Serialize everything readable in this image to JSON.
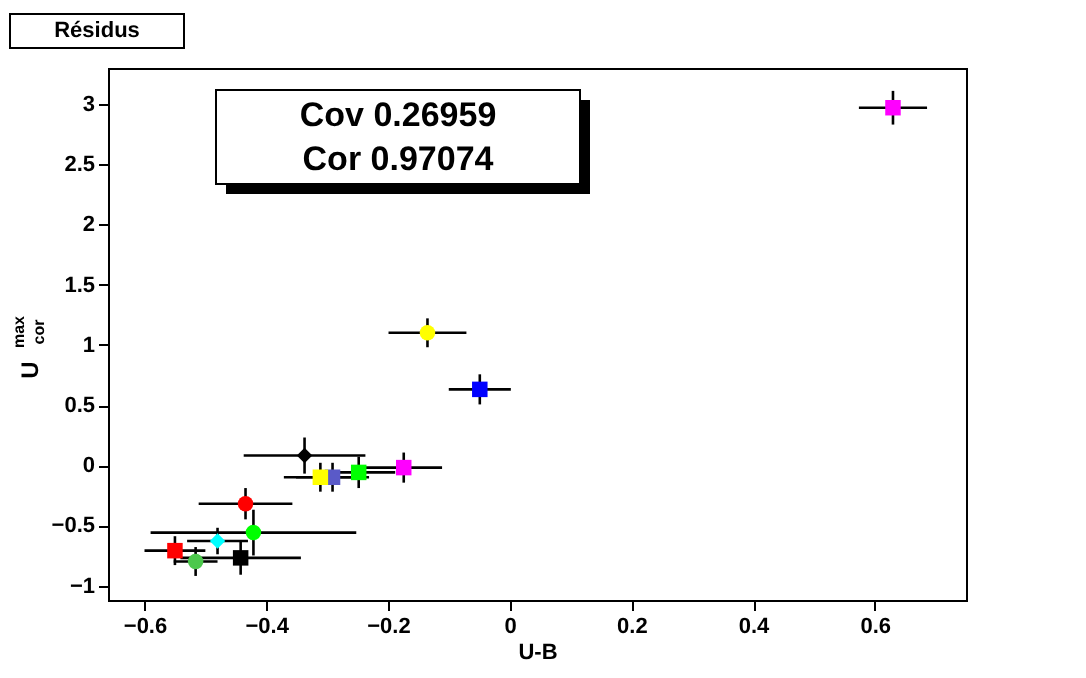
{
  "chart_data": {
    "type": "scatter",
    "title": "Résidus",
    "xlabel": "U-B",
    "ylabel": "U$^{max}$$_{cor}$",
    "annotations": [
      "Cov 0.26959",
      "Cor 0.97074"
    ],
    "xlim": [
      -0.66,
      0.75
    ],
    "ylim": [
      -1.12,
      3.3
    ],
    "xticks": [
      -0.6,
      -0.4,
      -0.2,
      0,
      0.2,
      0.4,
      0.6
    ],
    "yticks": [
      -1,
      -0.5,
      0,
      0.5,
      1,
      1.5,
      2,
      2.5,
      3
    ],
    "grid": false,
    "legend": false,
    "series": [
      {
        "color": "#ff00ff",
        "marker": "square",
        "x": [
          0.63
        ],
        "values": [
          2.97
        ],
        "errors": [
          0.14
        ],
        "xerrors": [
          0.056
        ]
      },
      {
        "color": "#ffff00",
        "marker": "circle",
        "x": [
          -0.135
        ],
        "values": [
          1.1
        ],
        "errors": [
          0.12
        ],
        "xerrors": [
          0.064
        ]
      },
      {
        "color": "#0000ff",
        "marker": "square",
        "x": [
          -0.049
        ],
        "values": [
          0.63
        ],
        "errors": [
          0.125
        ],
        "xerrors": [
          0.051
        ]
      },
      {
        "color": "#000000",
        "marker": "diamond",
        "x": [
          -0.337
        ],
        "values": [
          0.08
        ],
        "errors": [
          0.15
        ],
        "xerrors": [
          0.1
        ]
      },
      {
        "color": "#5a5ac8",
        "marker": "square",
        "x": [
          -0.291
        ],
        "values": [
          -0.1
        ],
        "errors": [
          0.12
        ],
        "xerrors": [
          0.06
        ]
      },
      {
        "color": "#ffff00",
        "marker": "square",
        "x": [
          -0.311
        ],
        "values": [
          -0.1
        ],
        "errors": [
          0.12
        ],
        "xerrors": [
          0.06
        ]
      },
      {
        "color": "#00ff00",
        "marker": "square",
        "x": [
          -0.248
        ],
        "values": [
          -0.06
        ],
        "errors": [
          0.13
        ],
        "xerrors": [
          0.06
        ]
      },
      {
        "color": "#ff00ff",
        "marker": "square",
        "x": [
          -0.174
        ],
        "values": [
          -0.02
        ],
        "errors": [
          0.125
        ],
        "xerrors": [
          0.063
        ]
      },
      {
        "color": "#ff0000",
        "marker": "circle",
        "x": [
          -0.434
        ],
        "values": [
          -0.32
        ],
        "errors": [
          0.13
        ],
        "xerrors": [
          0.077
        ]
      },
      {
        "color": "#00ff00",
        "marker": "circle",
        "x": [
          -0.421
        ],
        "values": [
          -0.56
        ],
        "errors": [
          0.19
        ],
        "xerrors": [
          0.169
        ]
      },
      {
        "color": "#00ffff",
        "marker": "diamond",
        "x": [
          -0.48
        ],
        "values": [
          -0.63
        ],
        "errors": [
          0.11
        ],
        "xerrors": [
          0.05
        ]
      },
      {
        "color": "#ff0000",
        "marker": "square",
        "x": [
          -0.55
        ],
        "values": [
          -0.71
        ],
        "errors": [
          0.12
        ],
        "xerrors": [
          0.05
        ]
      },
      {
        "color": "#000000",
        "marker": "square",
        "x": [
          -0.442
        ],
        "values": [
          -0.77
        ],
        "errors": [
          0.14
        ],
        "xerrors": [
          0.099
        ]
      },
      {
        "color": "#4cc84c",
        "marker": "circle",
        "x": [
          -0.516
        ],
        "values": [
          -0.8
        ],
        "errors": [
          0.12
        ],
        "xerrors": [
          0.036
        ]
      }
    ]
  }
}
